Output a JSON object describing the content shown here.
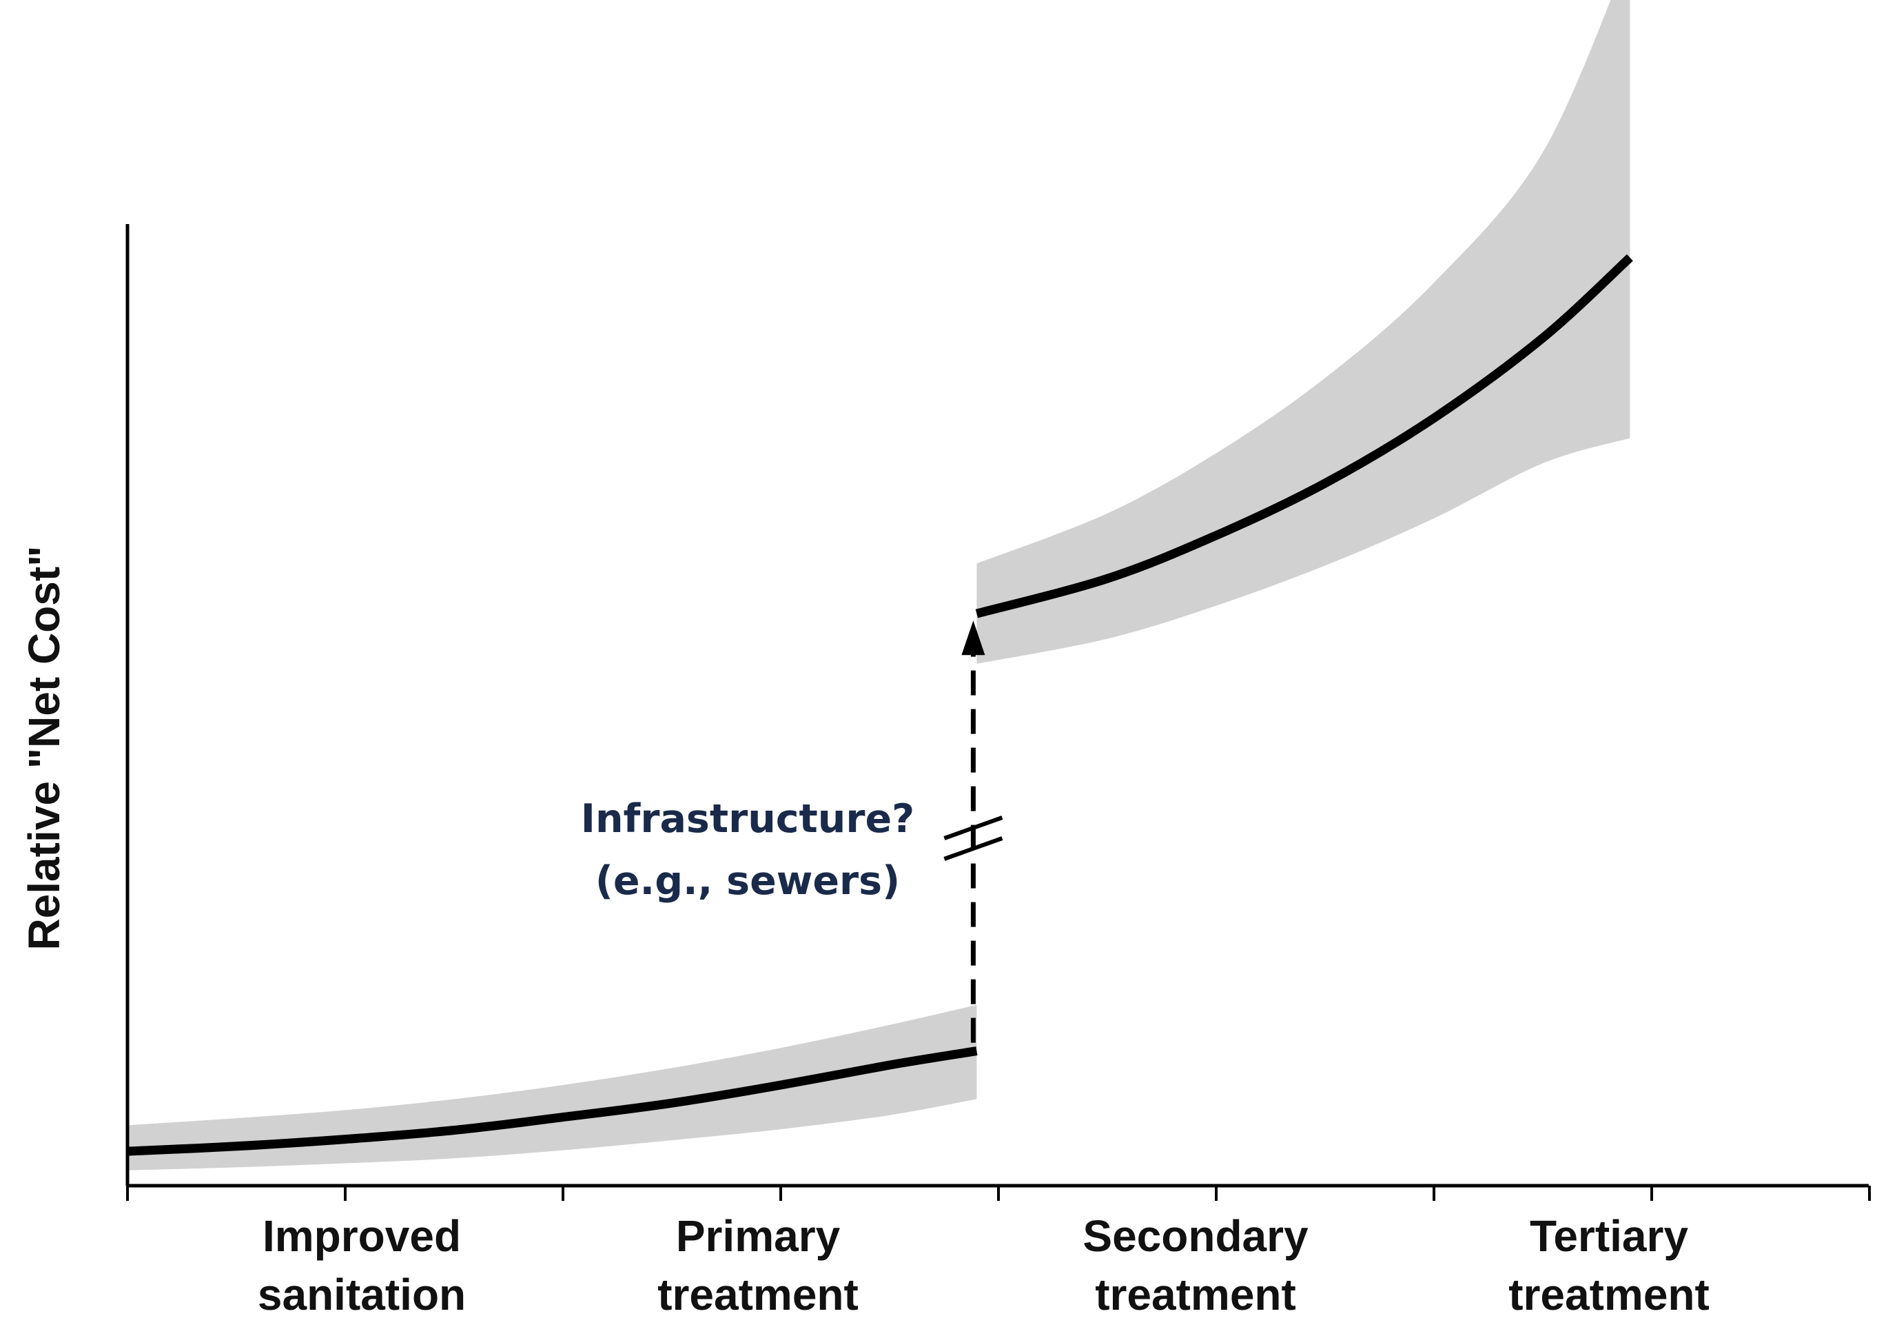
{
  "chart_data": {
    "type": "line",
    "ylabel": "Relative \"Net Cost\"",
    "categories": [
      {
        "line1": "Improved",
        "line2": "sanitation"
      },
      {
        "line1": "Primary",
        "line2": "treatment"
      },
      {
        "line1": "Secondary",
        "line2": "treatment"
      },
      {
        "line1": "Tertiary",
        "line2": "treatment"
      }
    ],
    "annotation": {
      "line1": "Infrastructure?",
      "line2": "(e.g., sewers)",
      "color": "#1a2a4a"
    },
    "ylim": [
      0,
      100
    ],
    "grid": false,
    "series": [
      {
        "segment": "before-infrastructure",
        "x": [
          0,
          0.5,
          1.0,
          1.5,
          2.0,
          2.5,
          3.0,
          3.5,
          3.9
        ],
        "y": [
          2.4,
          2.9,
          3.6,
          4.5,
          5.8,
          7.2,
          9.0,
          11.0,
          12.4
        ],
        "upper": [
          5.0,
          5.7,
          6.5,
          7.6,
          9.0,
          10.7,
          12.7,
          15.0,
          17.0
        ],
        "lower": [
          0.5,
          0.8,
          1.2,
          1.7,
          2.5,
          3.5,
          4.6,
          6.0,
          7.6
        ]
      },
      {
        "segment": "after-infrastructure",
        "x": [
          3.9,
          4.5,
          5.0,
          5.5,
          6.0,
          6.5,
          6.9
        ],
        "y": [
          56.0,
          59.5,
          63.8,
          69.0,
          75.5,
          83.5,
          91.5
        ],
        "upper": [
          61.0,
          66.0,
          72.0,
          79.5,
          89.0,
          102.0,
          122.0
        ],
        "lower": [
          51.0,
          53.5,
          56.8,
          60.8,
          65.5,
          71.0,
          73.5
        ]
      }
    ],
    "colors": {
      "band": "#d1d1d1",
      "line": "#000000",
      "axis": "#000000"
    }
  }
}
